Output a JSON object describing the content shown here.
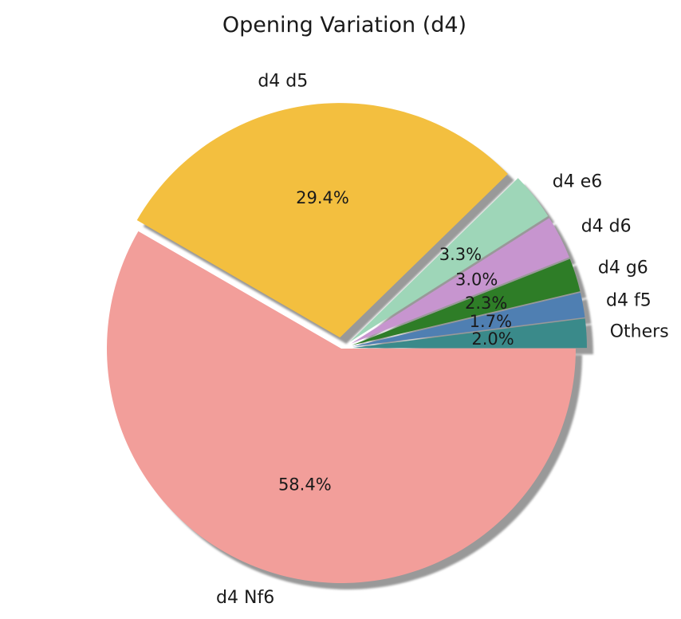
{
  "chart_data": {
    "type": "pie",
    "title": "Opening Variation (d4)",
    "slices": [
      {
        "label": "Others",
        "value": 2.0,
        "pct_label": "2.0%",
        "color": "#3a8a8a",
        "exploded": true
      },
      {
        "label": "d4 f5",
        "value": 1.7,
        "pct_label": "1.7%",
        "color": "#4f7fb2",
        "exploded": true
      },
      {
        "label": "d4 g6",
        "value": 2.3,
        "pct_label": "2.3%",
        "color": "#2e7d27",
        "exploded": true
      },
      {
        "label": "d4 d6",
        "value": 3.0,
        "pct_label": "3.0%",
        "color": "#c795cf",
        "exploded": true
      },
      {
        "label": "d4 e6",
        "value": 3.3,
        "pct_label": "3.3%",
        "color": "#9ed6b8",
        "exploded": true
      },
      {
        "label": "d4 d5",
        "value": 29.4,
        "pct_label": "29.4%",
        "color": "#f3bf3f",
        "exploded": true
      },
      {
        "label": "d4 Nf6",
        "value": 58.4,
        "pct_label": "58.4%",
        "color": "#f29e9a",
        "exploded": false
      }
    ],
    "start_angle_deg": 0,
    "direction": "counterclockwise",
    "shadow": true
  }
}
